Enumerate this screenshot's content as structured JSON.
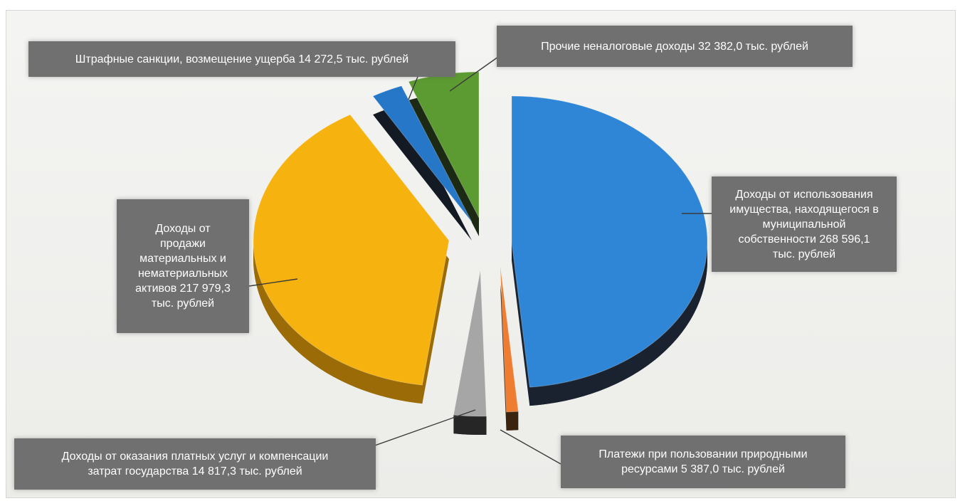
{
  "chart_data": {
    "type": "pie",
    "title": "",
    "slices": [
      {
        "label": "Доходы от использования имущества, находящегося в муниципальной собственности 268 596,1 тыс. рублей",
        "category": "Доходы от использования имущества, находящегося в муниципальной собственности",
        "value": 268596.1,
        "unit": "тыс. рублей",
        "color": "#2f86d6"
      },
      {
        "label": "Платежи при пользовании природными ресурсами 5 387,0 тыс. рублей",
        "category": "Платежи при пользовании природными ресурсами",
        "value": 5387.0,
        "unit": "тыс. рублей",
        "color": "#ee7d31"
      },
      {
        "label": "Доходы от оказания платных услуг и компенсации затрат государства 14 817,3 тыс. рублей",
        "category": "Доходы от оказания платных услуг и компенсации затрат государства",
        "value": 14817.3,
        "unit": "тыс. рублей",
        "color": "#a6a6a6"
      },
      {
        "label": "Доходы от продажи материальных и нематериальных активов 217 979,3 тыс. рублей",
        "category": "Доходы от продажи материальных и нематериальных активов",
        "value": 217979.3,
        "unit": "тыс. рублей",
        "color": "#f6b20f"
      },
      {
        "label": "Штрафные санкции, возмещение ущерба 14 272,5 тыс. рублей",
        "category": "Штрафные санкции, возмещение ущерба",
        "value": 14272.5,
        "unit": "тыс. рублей",
        "color": "#2777c9"
      },
      {
        "label": "Прочие неналоговые доходы 32 382,0 тыс. рублей",
        "category": "Прочие неналоговые доходы",
        "value": 32382.0,
        "unit": "тыс. рублей",
        "color": "#5c9b31"
      }
    ],
    "style": "3d-exploded",
    "legend": "none"
  },
  "labels": {
    "property": [
      "Доходы от использования",
      "имущества, находящегося в",
      "муниципальной",
      "собственности 268 596,1",
      "тыс. рублей"
    ],
    "natural": [
      "Платежи при пользовании природными",
      "ресурсами 5 387,0 тыс. рублей"
    ],
    "services": [
      "Доходы от оказания платных услуг и компенсации",
      "затрат государства 14  817,3 тыс. рублей"
    ],
    "sales": [
      "Доходы от",
      "продажи",
      "материальных и",
      "нематериальных",
      "активов 217 979,3",
      "тыс. рублей"
    ],
    "fines": [
      "Штрафные санкции, возмещение ущерба 14  272,5 тыс. рублей"
    ],
    "other": [
      "Прочие неналоговые доходы 32 382,0 тыс. рублей"
    ]
  }
}
